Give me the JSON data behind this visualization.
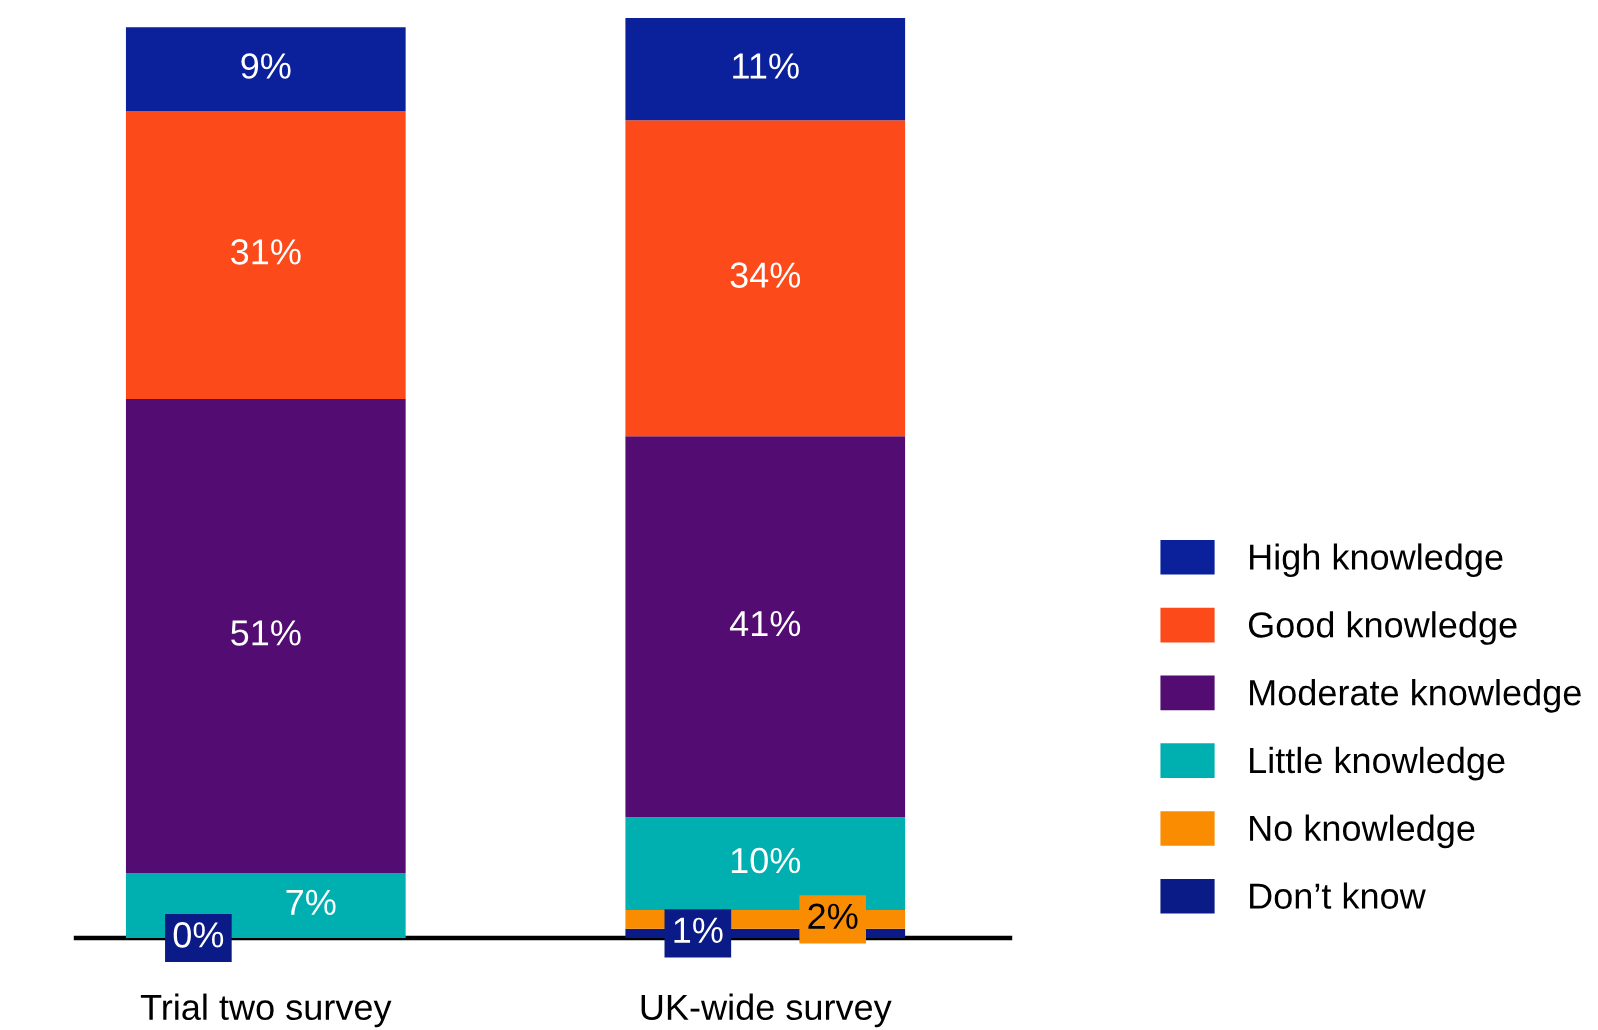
{
  "chart_data": {
    "type": "bar",
    "stacked": true,
    "categories": [
      "Trial two survey",
      "UK-wide survey"
    ],
    "series": [
      {
        "name": "Don’t know",
        "color": "#0a1a87",
        "values": [
          0,
          1
        ],
        "value_labels": [
          "0%",
          "1%"
        ]
      },
      {
        "name": "No knowledge",
        "color": "#f98c00",
        "values": [
          null,
          2
        ],
        "value_labels": [
          null,
          "2%"
        ]
      },
      {
        "name": "Little knowledge",
        "color": "#00b0b0",
        "values": [
          7,
          10
        ],
        "value_labels": [
          "7%",
          "10%"
        ]
      },
      {
        "name": "Moderate knowledge",
        "color": "#520c72",
        "values": [
          51,
          41
        ],
        "value_labels": [
          "51%",
          "41%"
        ]
      },
      {
        "name": "Good knowledge",
        "color": "#fc4a1a",
        "values": [
          31,
          34
        ],
        "value_labels": [
          "31%",
          "34%"
        ]
      },
      {
        "name": "High knowledge",
        "color": "#0b219c",
        "values": [
          9,
          11
        ],
        "value_labels": [
          "9%",
          "11%"
        ]
      }
    ],
    "legend": "right"
  }
}
